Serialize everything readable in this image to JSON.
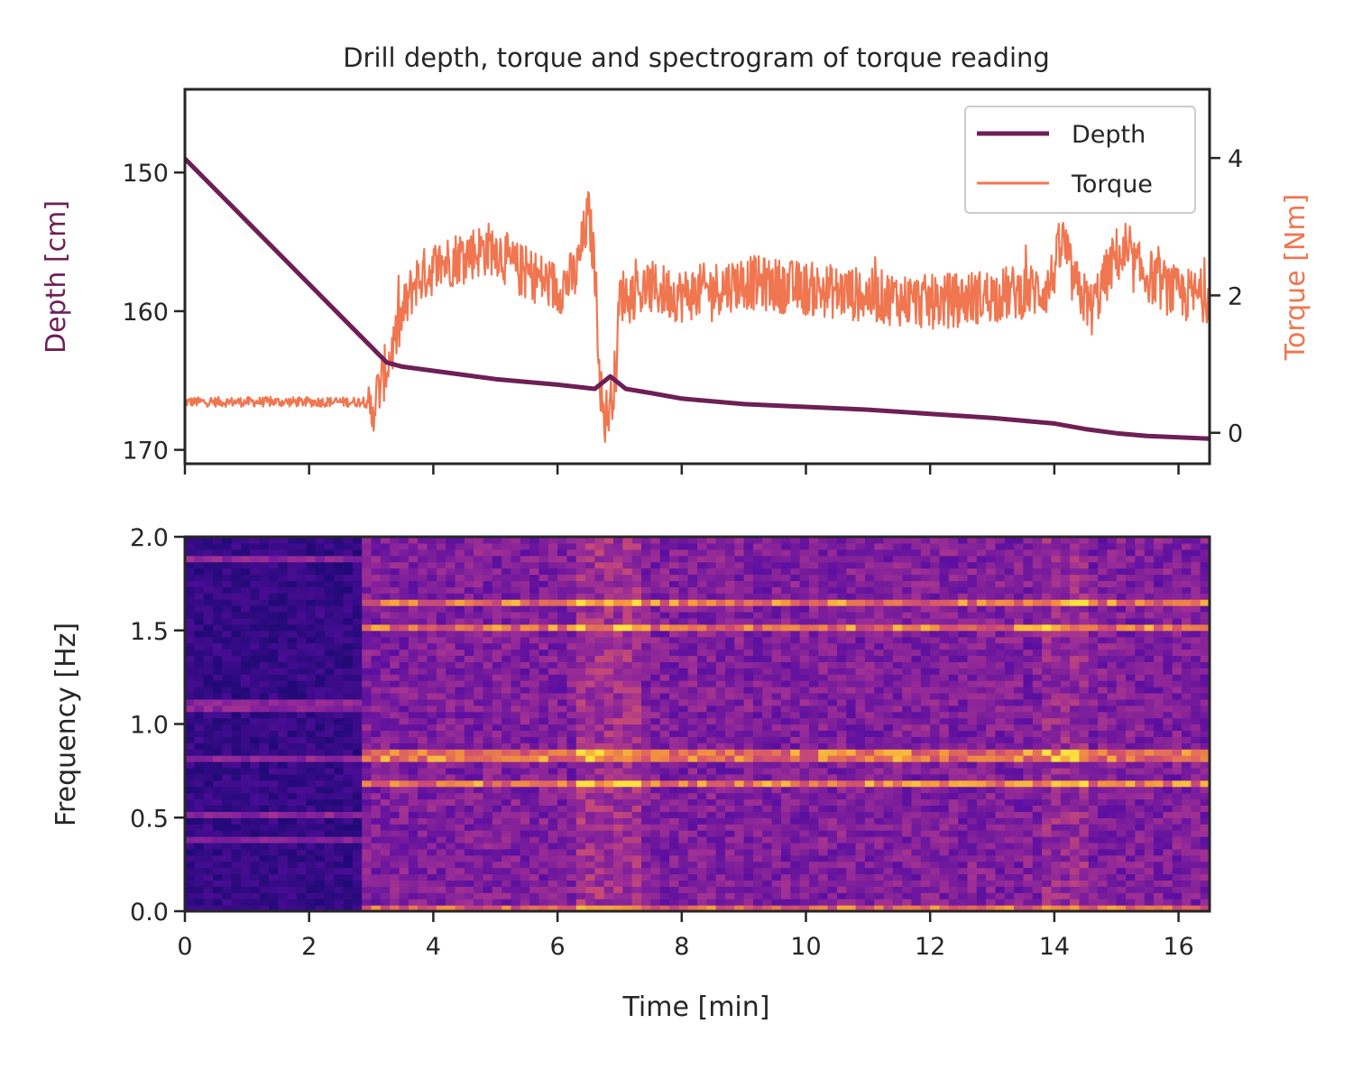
{
  "chart_data": [
    {
      "type": "line",
      "title": "Drill depth, torque and spectrogram of torque reading",
      "xlim": [
        0,
        16.5
      ],
      "xticks": [
        0,
        2,
        4,
        6,
        8,
        10,
        12,
        14,
        16
      ],
      "y_left": {
        "label": "Depth [cm]",
        "inverted": true,
        "ylim": [
          171,
          144
        ],
        "ticks": [
          150,
          160,
          170
        ],
        "tick_labels": [
          "150",
          "160",
          "170"
        ]
      },
      "y_right": {
        "label": "Torque [Nm]",
        "ylim": [
          -0.45,
          5.0
        ],
        "ticks": [
          0,
          2,
          4
        ],
        "tick_labels": [
          "0",
          "2",
          "4"
        ]
      },
      "legend": {
        "placement": "top-right",
        "entries": [
          "Depth",
          "Torque"
        ]
      },
      "series": [
        {
          "name": "Depth",
          "axis": "left",
          "color": "#6d1f56",
          "x": [
            0,
            3.25,
            3.5,
            4.0,
            5.0,
            6.0,
            6.6,
            6.85,
            7.1,
            7.5,
            8.0,
            9.0,
            10.0,
            11.0,
            12.0,
            13.0,
            14.0,
            14.5,
            15.0,
            15.5,
            16.0,
            16.5
          ],
          "y": [
            149.0,
            163.7,
            164.0,
            164.3,
            164.9,
            165.3,
            165.6,
            164.7,
            165.6,
            165.9,
            166.3,
            166.7,
            166.9,
            167.1,
            167.4,
            167.7,
            168.1,
            168.5,
            168.8,
            169.0,
            169.1,
            169.2
          ]
        },
        {
          "name": "Torque",
          "axis": "right",
          "color": "#f07650",
          "x": [
            0,
            2.9,
            3.0,
            3.15,
            3.3,
            3.5,
            3.7,
            4.0,
            4.5,
            5.0,
            5.3,
            5.6,
            6.0,
            6.3,
            6.5,
            6.6,
            6.7,
            6.75,
            6.85,
            6.95,
            7.0,
            7.5,
            8.0,
            9.0,
            10.0,
            11.0,
            12.0,
            13.0,
            13.9,
            14.15,
            14.3,
            14.6,
            15.0,
            15.5,
            16.0,
            16.5
          ],
          "y": [
            0.45,
            0.45,
            0.3,
            0.7,
            1.1,
            1.7,
            2.2,
            2.4,
            2.6,
            2.7,
            2.4,
            2.3,
            2.1,
            2.3,
            3.2,
            2.4,
            0.6,
            0.2,
            0.4,
            1.0,
            2.0,
            2.1,
            2.0,
            2.2,
            2.1,
            2.0,
            1.9,
            2.0,
            2.1,
            2.8,
            2.2,
            1.8,
            2.6,
            2.3,
            2.0,
            2.0
          ],
          "noise_amplitude": 0.4
        }
      ]
    },
    {
      "type": "heatmap",
      "title": "",
      "xlabel": "Time [min]",
      "ylabel": "Frequency [Hz]",
      "xlim": [
        0,
        16.5
      ],
      "ylim": [
        0.0,
        2.0
      ],
      "xticks": [
        0,
        2,
        4,
        6,
        8,
        10,
        12,
        14,
        16
      ],
      "xtick_labels": [
        "0",
        "2",
        "4",
        "6",
        "8",
        "10",
        "12",
        "14",
        "16"
      ],
      "yticks": [
        0.0,
        0.5,
        1.0,
        1.5,
        2.0
      ],
      "ytick_labels": [
        "0.0",
        "0.5",
        "1.0",
        "1.5",
        "2.0"
      ],
      "colormap": "inferno-like",
      "low_intensity_region_until_min": 2.8,
      "harmonic_bands_hz": [
        0.0,
        0.68,
        0.83,
        1.52,
        1.65
      ],
      "early_bands_hz": [
        0.37,
        0.52,
        0.83,
        1.1,
        1.88
      ]
    }
  ]
}
